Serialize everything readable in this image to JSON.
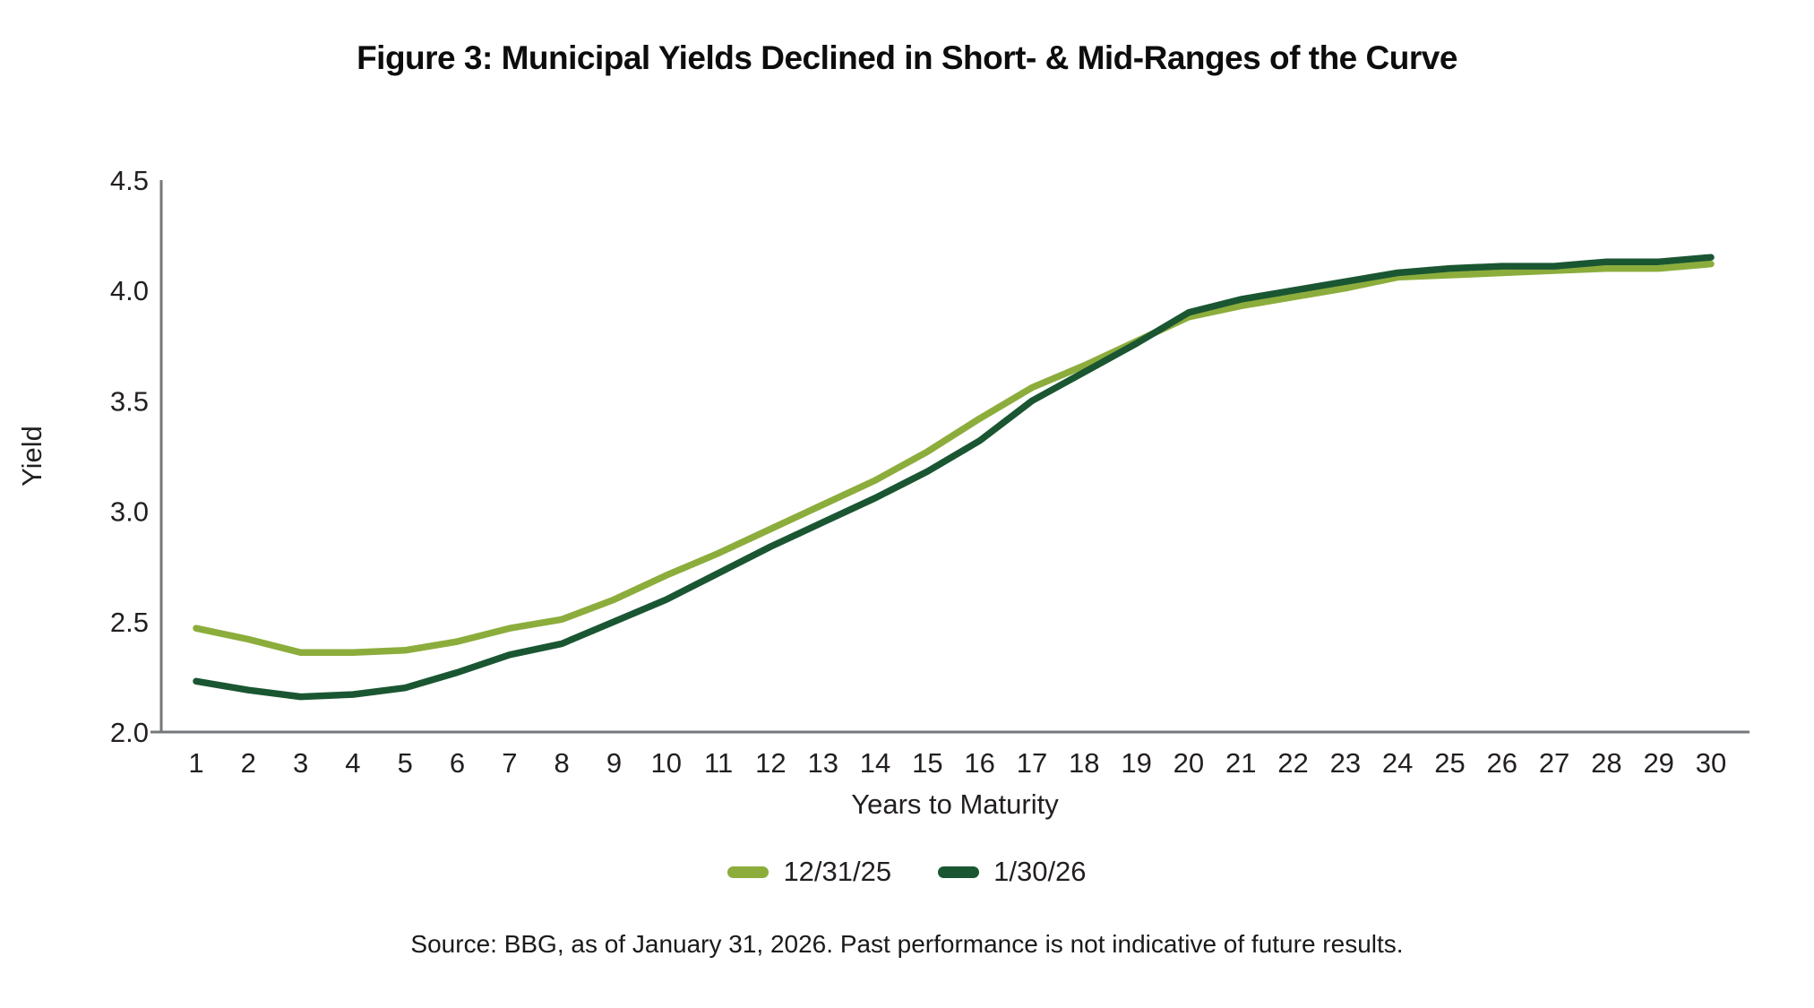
{
  "title": "Figure 3: Municipal Yields Declined in Short- & Mid-Ranges of the Curve",
  "source_note": "Source: BBG, as of January 31, 2026. Past performance is not indicative of future results.",
  "chart_data": {
    "type": "line",
    "title": "Figure 3: Municipal Yields Declined in Short- & Mid-Ranges of the Curve",
    "xlabel": "Years to Maturity",
    "ylabel": "Yield",
    "x": [
      1,
      2,
      3,
      4,
      5,
      6,
      7,
      8,
      9,
      10,
      11,
      12,
      13,
      14,
      15,
      16,
      17,
      18,
      19,
      20,
      21,
      22,
      23,
      24,
      25,
      26,
      27,
      28,
      29,
      30
    ],
    "ylim": [
      2.0,
      4.5
    ],
    "ytick_labels": [
      "2.0",
      "2.5",
      "3.0",
      "3.5",
      "4.0",
      "4.5"
    ],
    "grid": false,
    "legend_position": "bottom",
    "axis_color": "#76777a",
    "series": [
      {
        "name": "12/31/25",
        "color": "#8cad3c",
        "values": [
          2.47,
          2.42,
          2.36,
          2.36,
          2.37,
          2.41,
          2.47,
          2.51,
          2.6,
          2.71,
          2.81,
          2.92,
          3.03,
          3.14,
          3.27,
          3.42,
          3.56,
          3.66,
          3.77,
          3.88,
          3.93,
          3.97,
          4.01,
          4.06,
          4.07,
          4.08,
          4.09,
          4.1,
          4.1,
          4.12
        ]
      },
      {
        "name": "1/30/26",
        "color": "#1a5632",
        "values": [
          2.23,
          2.19,
          2.16,
          2.17,
          2.2,
          2.27,
          2.35,
          2.4,
          2.5,
          2.6,
          2.72,
          2.84,
          2.95,
          3.06,
          3.18,
          3.32,
          3.5,
          3.63,
          3.76,
          3.9,
          3.96,
          4.0,
          4.04,
          4.08,
          4.1,
          4.11,
          4.11,
          4.13,
          4.13,
          4.15
        ]
      }
    ]
  }
}
